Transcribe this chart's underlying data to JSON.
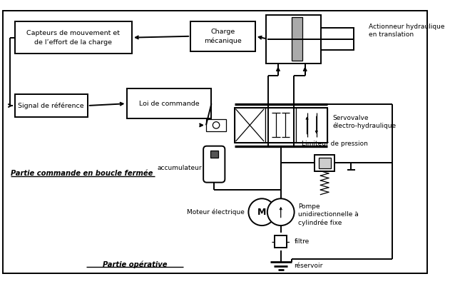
{
  "bg": "#ffffff",
  "lw": 1.4,
  "lwt": 0.9,
  "fs": 6.8,
  "figsize": [
    6.38,
    3.98
  ],
  "dpi": 100,
  "blocks": {
    "capteurs": [
      22,
      20,
      174,
      48
    ],
    "charge": [
      283,
      20,
      96,
      44
    ],
    "signal": [
      22,
      128,
      108,
      34
    ],
    "loi": [
      188,
      120,
      126,
      44
    ]
  },
  "labels": {
    "capteurs_l1": "Capteurs de mouvement et",
    "capteurs_l2": "de l’effort de la charge",
    "charge_l1": "Charge",
    "charge_l2": "mécanique",
    "signal": "Signal de référence",
    "loi": "Loi de commande",
    "actionneur_l1": "Actionneur hydraulique",
    "actionneur_l2": "en translation",
    "servovalve_l1": "Servovalve",
    "servovalve_l2": "électro-hydraulique",
    "limiteur": "Limiteur de pression",
    "accumulateur": "accumulateur",
    "moteur": "Moteur électrique",
    "pompe_l1": "Pompe",
    "pompe_l2": "unidirectionnelle à",
    "pompe_l3": "cylindrée fixe",
    "filtre": "filtre",
    "reservoir": "réservoir",
    "partie_commande": "Partie commande en boucle fermée",
    "partie_operative": "Partie opérative"
  }
}
